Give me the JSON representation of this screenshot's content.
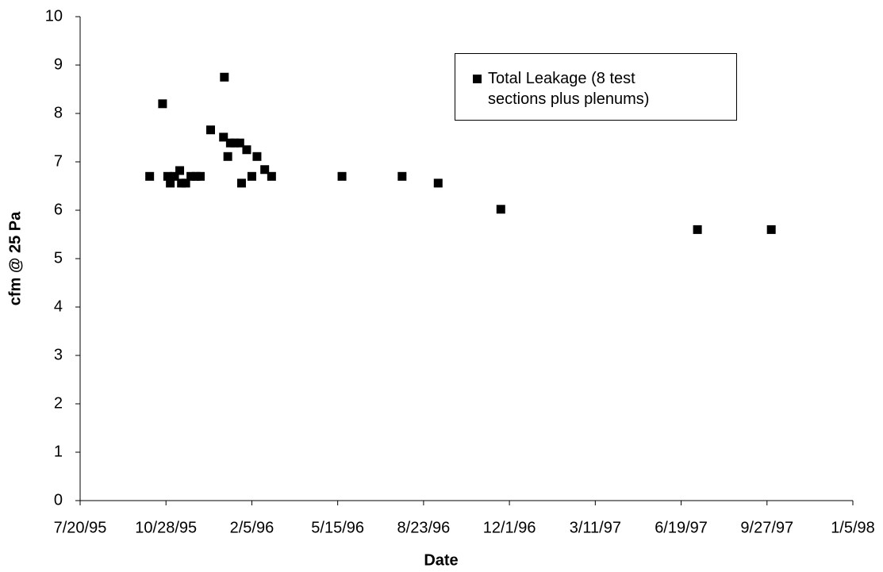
{
  "chart_data": {
    "type": "scatter",
    "x_label": "Date",
    "y_label": "cfm @ 25 Pa",
    "xlim": [
      "7/20/95",
      "1/5/98"
    ],
    "xticks": [
      "7/20/95",
      "10/28/95",
      "2/5/96",
      "5/15/96",
      "8/23/96",
      "12/1/96",
      "3/11/97",
      "6/19/97",
      "9/27/97",
      "1/5/98"
    ],
    "ylim": [
      0,
      10
    ],
    "yticks": [
      0,
      1,
      2,
      3,
      4,
      5,
      6,
      7,
      8,
      9,
      10
    ],
    "grid": false,
    "legend_position": "upper right",
    "series": [
      {
        "name": "Total Leakage (8 test sections plus plenums)",
        "color": "#000000",
        "x": [
          "10/9/95",
          "10/24/95",
          "10/30/95",
          "11/2/95",
          "11/7/95",
          "11/13/95",
          "11/15/95",
          "11/20/95",
          "11/26/95",
          "12/2/95",
          "12/7/95",
          "12/19/95",
          "1/3/96",
          "1/4/96",
          "1/8/96",
          "1/11/96",
          "1/16/96",
          "1/22/96",
          "1/24/96",
          "1/30/96",
          "2/5/96",
          "2/11/96",
          "2/20/96",
          "2/28/96",
          "5/20/96",
          "7/29/96",
          "9/9/96",
          "11/21/96",
          "7/8/97",
          "10/2/97"
        ],
        "values": [
          6.7,
          8.2,
          6.7,
          6.56,
          6.7,
          6.82,
          6.56,
          6.56,
          6.7,
          6.7,
          6.7,
          7.66,
          7.51,
          8.75,
          7.11,
          7.39,
          7.39,
          7.39,
          6.56,
          7.25,
          6.7,
          7.11,
          6.84,
          6.7,
          6.7,
          6.7,
          6.56,
          6.02,
          5.6,
          5.6
        ]
      }
    ]
  }
}
